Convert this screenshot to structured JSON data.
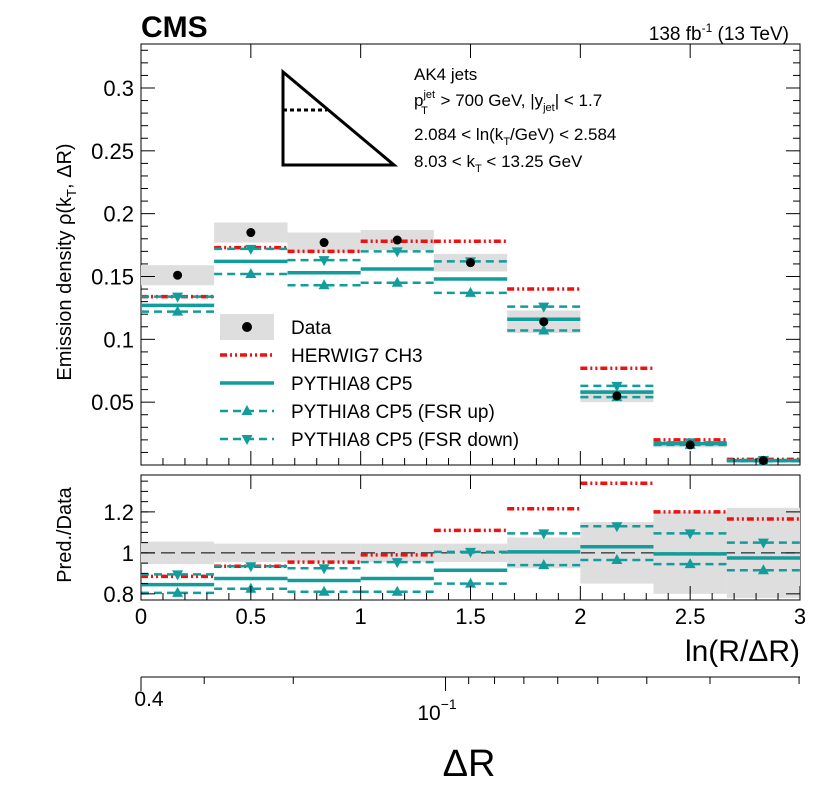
{
  "header": {
    "experiment": "CMS",
    "lumi": "138 fb",
    "lumi_sup": "-1",
    "energy": " (13 TeV)"
  },
  "annotation": {
    "line1": "AK4 jets",
    "pt_p": "p",
    "pt_sup": "jet",
    "pt_sub": "T",
    "pt_rest": " > 700 GeV, |y",
    "y_sub": "jet",
    "y_rest": "| < 1.7",
    "kt_pre": "2.084 < ln(k",
    "kt_sub": "T",
    "kt_post": "/GeV) < 2.584",
    "kt2_pre": "8.03 < k",
    "kt2_sub": "T",
    "kt2_post": " < 13.25 GeV"
  },
  "axes": {
    "top_ylabel": "Emission density ρ(k",
    "top_ylabel_sub": "T",
    "top_ylabel_end": ", ΔR)",
    "bottom_ylabel": "Pred./Data",
    "xlabel": "ln(R/ΔR)",
    "dr_label": "ΔR",
    "dr_tick_04": "0.4",
    "dr_tick_base": "10",
    "dr_tick_exp": "−1"
  },
  "colors": {
    "data": "#000000",
    "band": "#dedede",
    "herwig": "#ee1111",
    "pythia": "#139c9c"
  },
  "chart_data": {
    "type": "step",
    "xlim": [
      0,
      3
    ],
    "top_ylim": [
      0,
      0.335
    ],
    "ratio_ylim": [
      0.77,
      1.38
    ],
    "x_ticks": [
      "0",
      "0.5",
      "1",
      "1.5",
      "2",
      "2.5",
      "3"
    ],
    "top_y_ticks": [
      "0.05",
      "0.1",
      "0.15",
      "0.2",
      "0.25",
      "0.3"
    ],
    "ratio_y_ticks": [
      "0.8",
      "1",
      "1.2"
    ],
    "bin_edges": [
      0,
      0.333,
      0.667,
      1.0,
      1.333,
      1.667,
      2.0,
      2.333,
      2.667,
      3.0
    ],
    "series": [
      {
        "name": "Data",
        "key": "data",
        "values": [
          0.151,
          0.185,
          0.177,
          0.179,
          0.161,
          0.114,
          0.055,
          0.016,
          0.0035
        ],
        "unc": [
          0.008,
          0.008,
          0.008,
          0.008,
          0.007,
          0.009,
          0.005,
          0.002,
          0.001
        ]
      },
      {
        "name": "HERWIG7 CH3",
        "key": "herwig",
        "values": [
          0.134,
          0.173,
          0.17,
          0.178,
          0.178,
          0.14,
          0.077,
          0.02,
          0.0045
        ],
        "ratio": [
          0.885,
          0.935,
          0.955,
          0.99,
          1.11,
          1.215,
          1.34,
          1.2,
          1.165
        ]
      },
      {
        "name": "PYTHIA8 CP5",
        "key": "pythia",
        "values": [
          0.127,
          0.162,
          0.153,
          0.156,
          0.148,
          0.116,
          0.058,
          0.017,
          0.0035
        ],
        "ratio": [
          0.845,
          0.875,
          0.865,
          0.875,
          0.915,
          1.005,
          1.03,
          0.995,
          0.975
        ]
      },
      {
        "name": "PYTHIA8 CP5 (FSR up)",
        "key": "fsr_up",
        "values": [
          0.122,
          0.152,
          0.143,
          0.145,
          0.137,
          0.107,
          0.054,
          0.016,
          0.003
        ],
        "ratio": [
          0.805,
          0.825,
          0.81,
          0.81,
          0.85,
          0.94,
          0.965,
          0.945,
          0.915
        ]
      },
      {
        "name": "PYTHIA8 CP5 (FSR down)",
        "key": "fsr_down",
        "values": [
          0.134,
          0.172,
          0.163,
          0.17,
          0.162,
          0.126,
          0.063,
          0.018,
          0.004
        ],
        "ratio": [
          0.895,
          0.935,
          0.925,
          0.955,
          1.005,
          1.095,
          1.13,
          1.095,
          1.05
        ]
      }
    ],
    "ratio_band": [
      0.055,
      0.045,
      0.045,
      0.045,
      0.045,
      0.075,
      0.15,
      0.2,
      0.22
    ]
  }
}
